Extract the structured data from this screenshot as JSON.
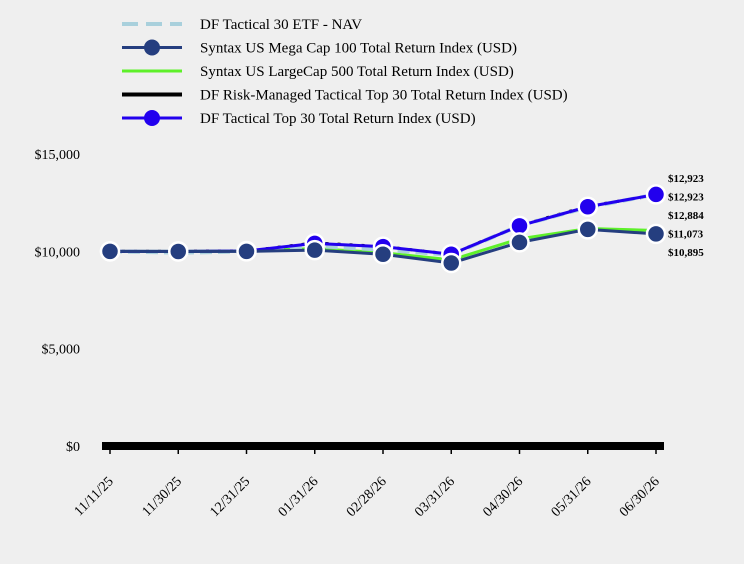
{
  "chart_data": {
    "type": "line",
    "x": [
      "11/11/25",
      "11/30/25",
      "12/31/25",
      "01/31/26",
      "02/28/26",
      "03/31/26",
      "04/30/26",
      "05/31/26",
      "06/30/26"
    ],
    "ylim": [
      0,
      15000
    ],
    "y_ticks": [
      {
        "value": 0,
        "label": "$0"
      },
      {
        "value": 5000,
        "label": "$5,000"
      },
      {
        "value": 10000,
        "label": "$10,000"
      },
      {
        "value": 15000,
        "label": "$15,000"
      }
    ],
    "grid": false,
    "legend_position": "top",
    "series": [
      {
        "name": "DF Tactical 30 ETF - NAV",
        "color": "#a9d0dc",
        "style": "dashed",
        "values": [
          10000,
          9930,
          9990,
          10280,
          10080,
          9820,
          11320,
          12260,
          12923
        ],
        "end_label": "$12,923"
      },
      {
        "name": "Syntax US Mega Cap 100 Total Return Index (USD)",
        "color": "#253e7f",
        "style": "solid-marker",
        "values": [
          10000,
          9990,
          10000,
          10060,
          9850,
          9400,
          10460,
          11130,
          10895
        ],
        "end_label": "$10,895"
      },
      {
        "name": "Syntax US LargeCap 500 Total Return Index (USD)",
        "color": "#5ef02a",
        "style": "solid",
        "values": [
          10000,
          10000,
          10020,
          10140,
          9930,
          9560,
          10640,
          11170,
          11073
        ],
        "end_label": "$11,073"
      },
      {
        "name": "DF Risk-Managed Tactical Top 30 Total Return Index (USD)",
        "color": "#000000",
        "style": "solid",
        "values": [
          10000,
          10000,
          10020,
          10430,
          10250,
          9850,
          11330,
          12320,
          12884
        ],
        "end_label": "$12,884"
      },
      {
        "name": "DF Tactical Top 30 Total Return Index (USD)",
        "color": "#2200ee",
        "style": "solid-marker",
        "values": [
          10000,
          10000,
          10020,
          10410,
          10240,
          9850,
          11310,
          12290,
          12923
        ],
        "end_label": "$12,923"
      }
    ]
  }
}
